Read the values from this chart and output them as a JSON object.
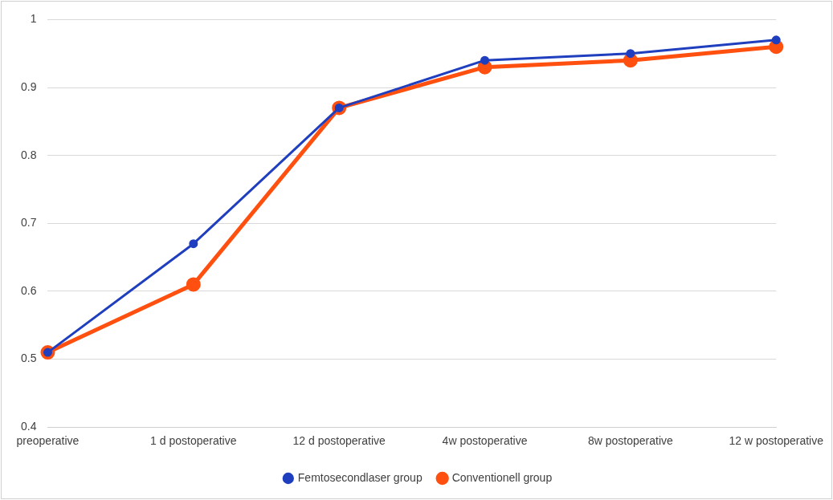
{
  "chart_data": {
    "type": "line",
    "categories": [
      "preoperative",
      "1 d postoperative",
      "12 d postoperative",
      "4w postoperative",
      "8w postoperative",
      "12 w postoperative"
    ],
    "series": [
      {
        "name": "Femtosecondlaser group",
        "color": "#1f3fbf",
        "values": [
          0.51,
          0.67,
          0.87,
          0.94,
          0.95,
          0.97
        ]
      },
      {
        "name": "Conventionell group",
        "color": "#ff5010",
        "values": [
          0.51,
          0.61,
          0.87,
          0.93,
          0.94,
          0.96
        ]
      }
    ],
    "ylim": [
      0.4,
      1
    ],
    "yticks": [
      0.4,
      0.5,
      0.6,
      0.7,
      0.8,
      0.9,
      1
    ],
    "grid": "y",
    "legend": "bottom",
    "marker": "circle",
    "line_style": "solid"
  }
}
